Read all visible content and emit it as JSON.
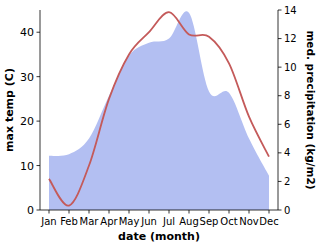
{
  "chart_data": {
    "type": "line",
    "x_label": "date (month)",
    "y_label": "max temp (C)",
    "y2_label": "med. precipitation (kg/m2)",
    "categories": [
      "Jan",
      "Feb",
      "Mar",
      "Apr",
      "May",
      "Jun",
      "Jul",
      "Aug",
      "Sep",
      "Oct",
      "Nov",
      "Dec"
    ],
    "series": [
      {
        "type": "area",
        "axis": "y2",
        "color": "#b3bff2",
        "values": [
          3.8,
          3.9,
          5.0,
          8.0,
          10.8,
          11.7,
          12.0,
          13.8,
          8.3,
          8.2,
          5.0,
          2.4
        ]
      },
      {
        "type": "line",
        "color": "#c45a5a",
        "values": [
          7,
          1,
          10,
          25,
          35,
          40,
          44.5,
          39.5,
          39,
          33,
          21,
          12
        ]
      }
    ],
    "ylim": [
      0,
      45
    ],
    "yticks": [
      0,
      10,
      20,
      30,
      40
    ],
    "y2lim": [
      0,
      14
    ],
    "y2ticks": [
      0,
      2,
      4,
      6,
      8,
      10,
      12,
      14
    ],
    "grid": false
  }
}
